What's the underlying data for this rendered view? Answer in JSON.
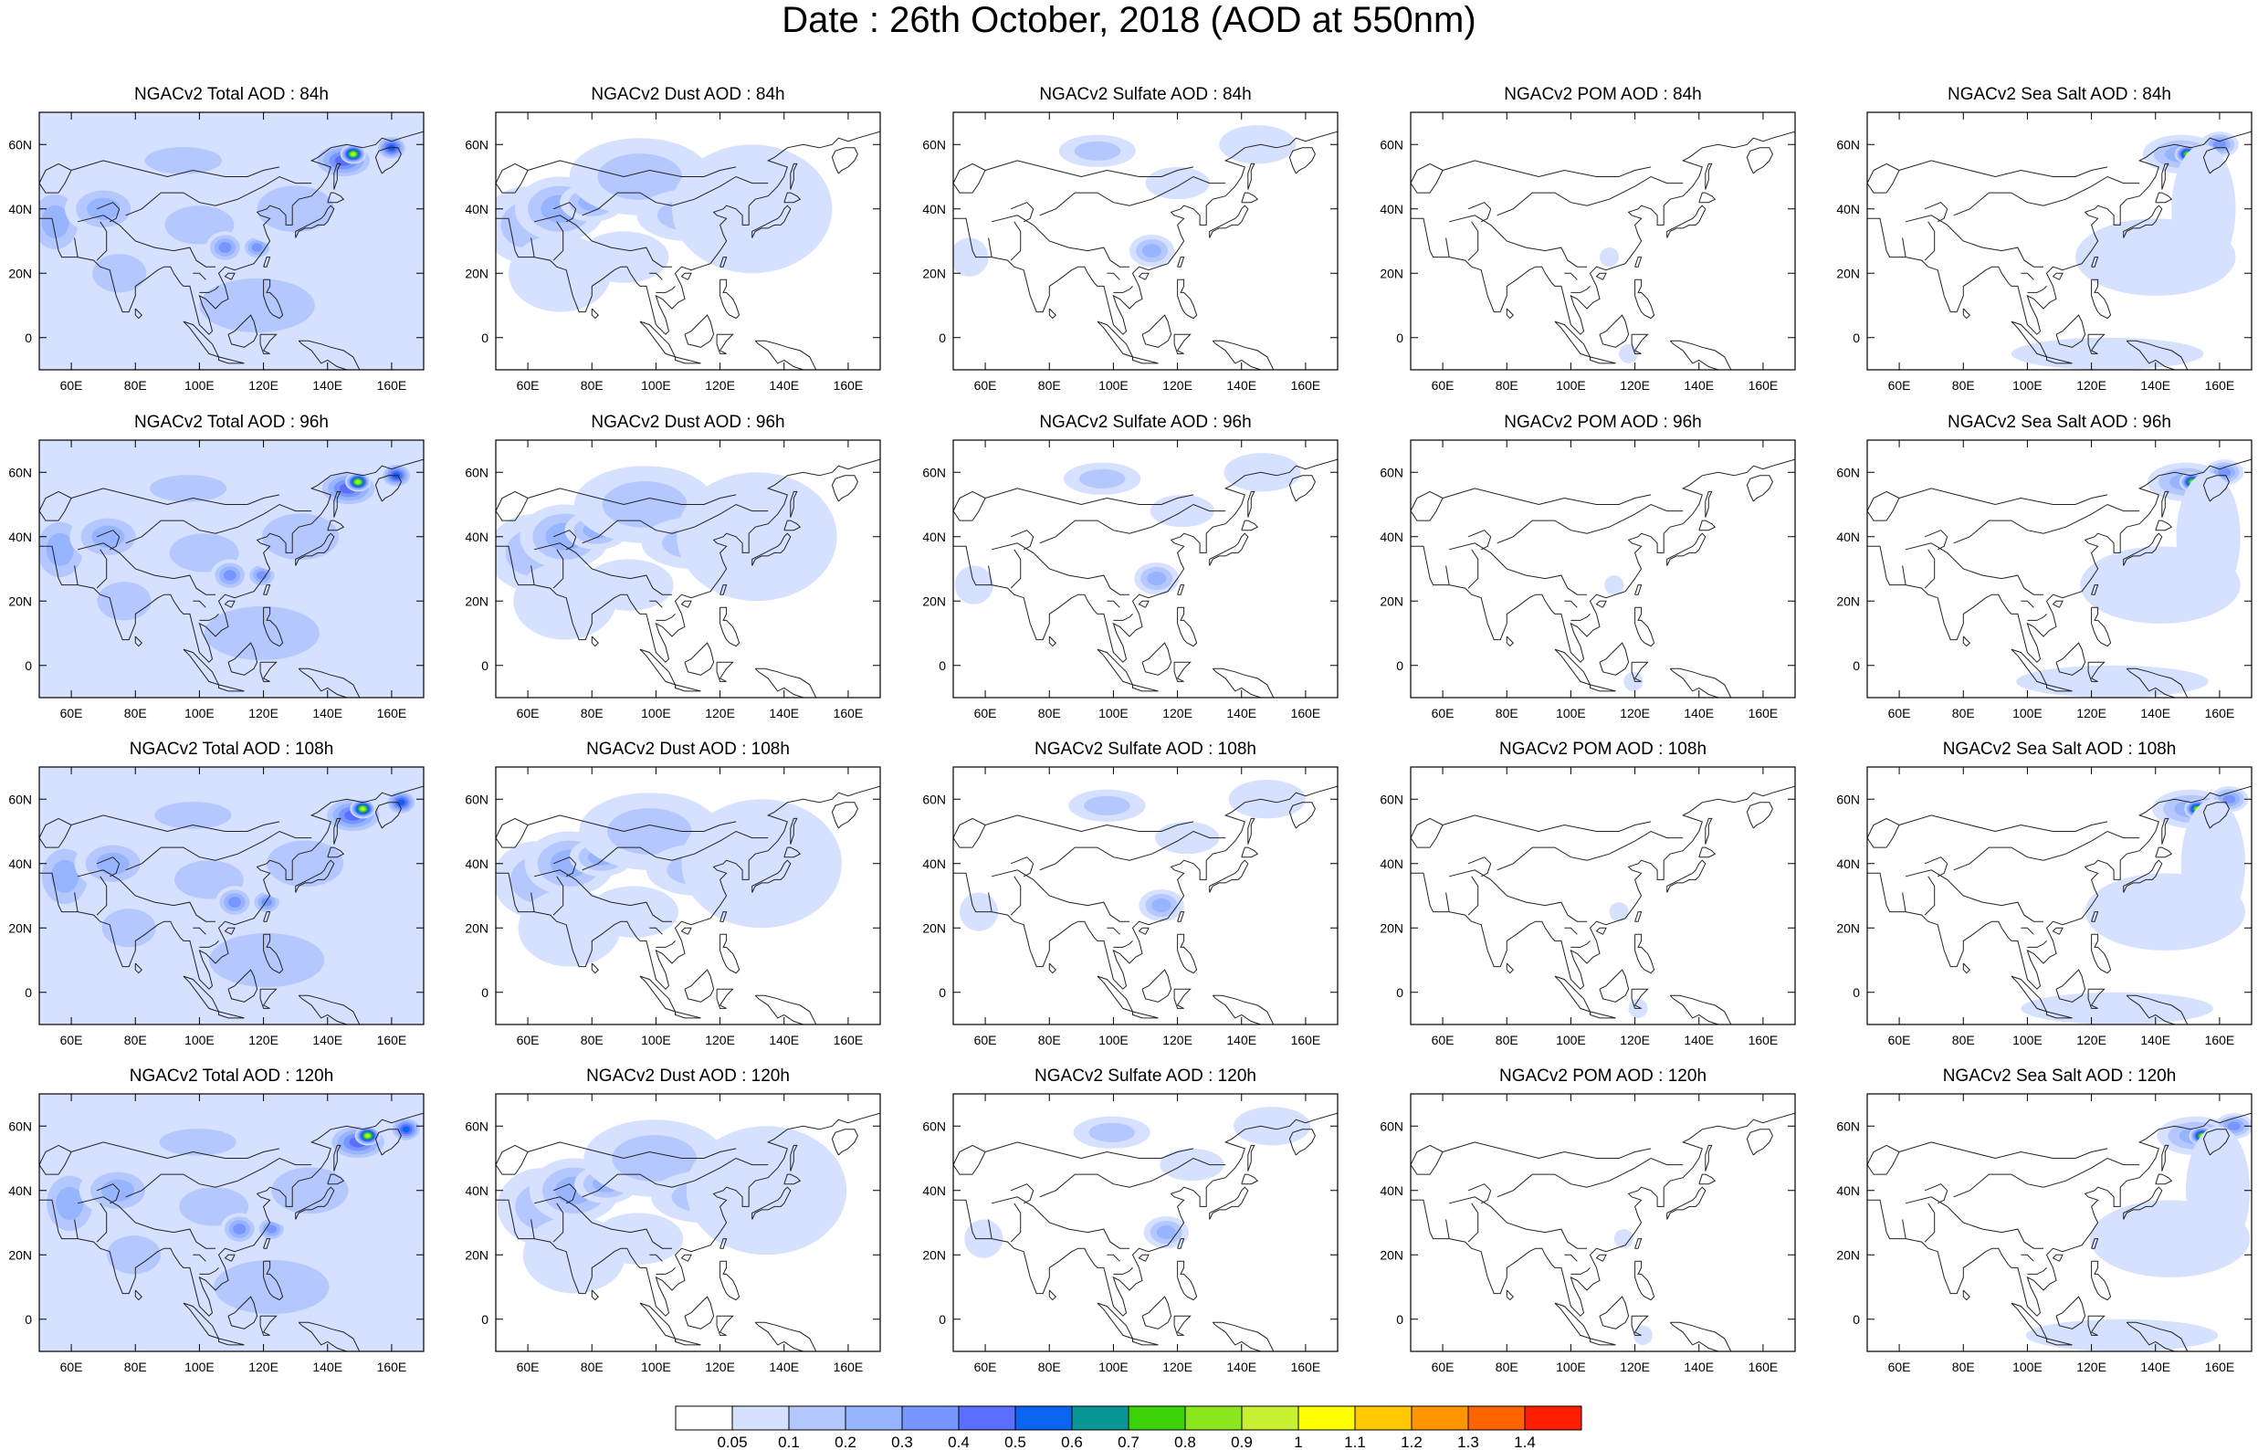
{
  "title": "Date : 26th October, 2018 (AOD at 550nm)",
  "lon_ticks": [
    "60E",
    "80E",
    "100E",
    "120E",
    "140E",
    "160E"
  ],
  "lat_ticks": [
    "60N",
    "40N",
    "20N",
    "0"
  ],
  "panels": [
    {
      "title": "NGACv2 Total AOD : 84h",
      "species": "total",
      "hour": 84
    },
    {
      "title": "NGACv2 Dust AOD : 84h",
      "species": "dust",
      "hour": 84
    },
    {
      "title": "NGACv2 Sulfate AOD : 84h",
      "species": "sulfate",
      "hour": 84
    },
    {
      "title": "NGACv2 POM AOD : 84h",
      "species": "pom",
      "hour": 84
    },
    {
      "title": "NGACv2 Sea Salt AOD : 84h",
      "species": "seasalt",
      "hour": 84
    },
    {
      "title": "NGACv2 Total AOD : 96h",
      "species": "total",
      "hour": 96
    },
    {
      "title": "NGACv2 Dust AOD : 96h",
      "species": "dust",
      "hour": 96
    },
    {
      "title": "NGACv2 Sulfate AOD : 96h",
      "species": "sulfate",
      "hour": 96
    },
    {
      "title": "NGACv2 POM AOD : 96h",
      "species": "pom",
      "hour": 96
    },
    {
      "title": "NGACv2 Sea Salt AOD : 96h",
      "species": "seasalt",
      "hour": 96
    },
    {
      "title": "NGACv2 Total AOD : 108h",
      "species": "total",
      "hour": 108
    },
    {
      "title": "NGACv2 Dust AOD : 108h",
      "species": "dust",
      "hour": 108
    },
    {
      "title": "NGACv2 Sulfate AOD : 108h",
      "species": "sulfate",
      "hour": 108
    },
    {
      "title": "NGACv2 POM AOD : 108h",
      "species": "pom",
      "hour": 108
    },
    {
      "title": "NGACv2 Sea Salt AOD : 108h",
      "species": "seasalt",
      "hour": 108
    },
    {
      "title": "NGACv2 Total AOD : 120h",
      "species": "total",
      "hour": 120
    },
    {
      "title": "NGACv2 Dust AOD : 120h",
      "species": "dust",
      "hour": 120
    },
    {
      "title": "NGACv2 Sulfate AOD : 120h",
      "species": "sulfate",
      "hour": 120
    },
    {
      "title": "NGACv2 POM AOD : 120h",
      "species": "pom",
      "hour": 120
    },
    {
      "title": "NGACv2 Sea Salt  AOD : 120h",
      "species": "seasalt",
      "hour": 120
    }
  ],
  "colorbar": {
    "labels": [
      "0.05",
      "0.1",
      "0.2",
      "0.3",
      "0.4",
      "0.5",
      "0.6",
      "0.7",
      "0.8",
      "0.9",
      "1",
      "1.1",
      "1.2",
      "1.3",
      "1.4"
    ],
    "colors": [
      "#ffffff",
      "#d6e0ff",
      "#b4c8ff",
      "#96b4ff",
      "#7896ff",
      "#5a6eff",
      "#0a64f0",
      "#0a9696",
      "#3cd20a",
      "#8ce61e",
      "#c8f032",
      "#ffff00",
      "#ffc800",
      "#ff9600",
      "#ff6400",
      "#ff1e00"
    ]
  }
}
